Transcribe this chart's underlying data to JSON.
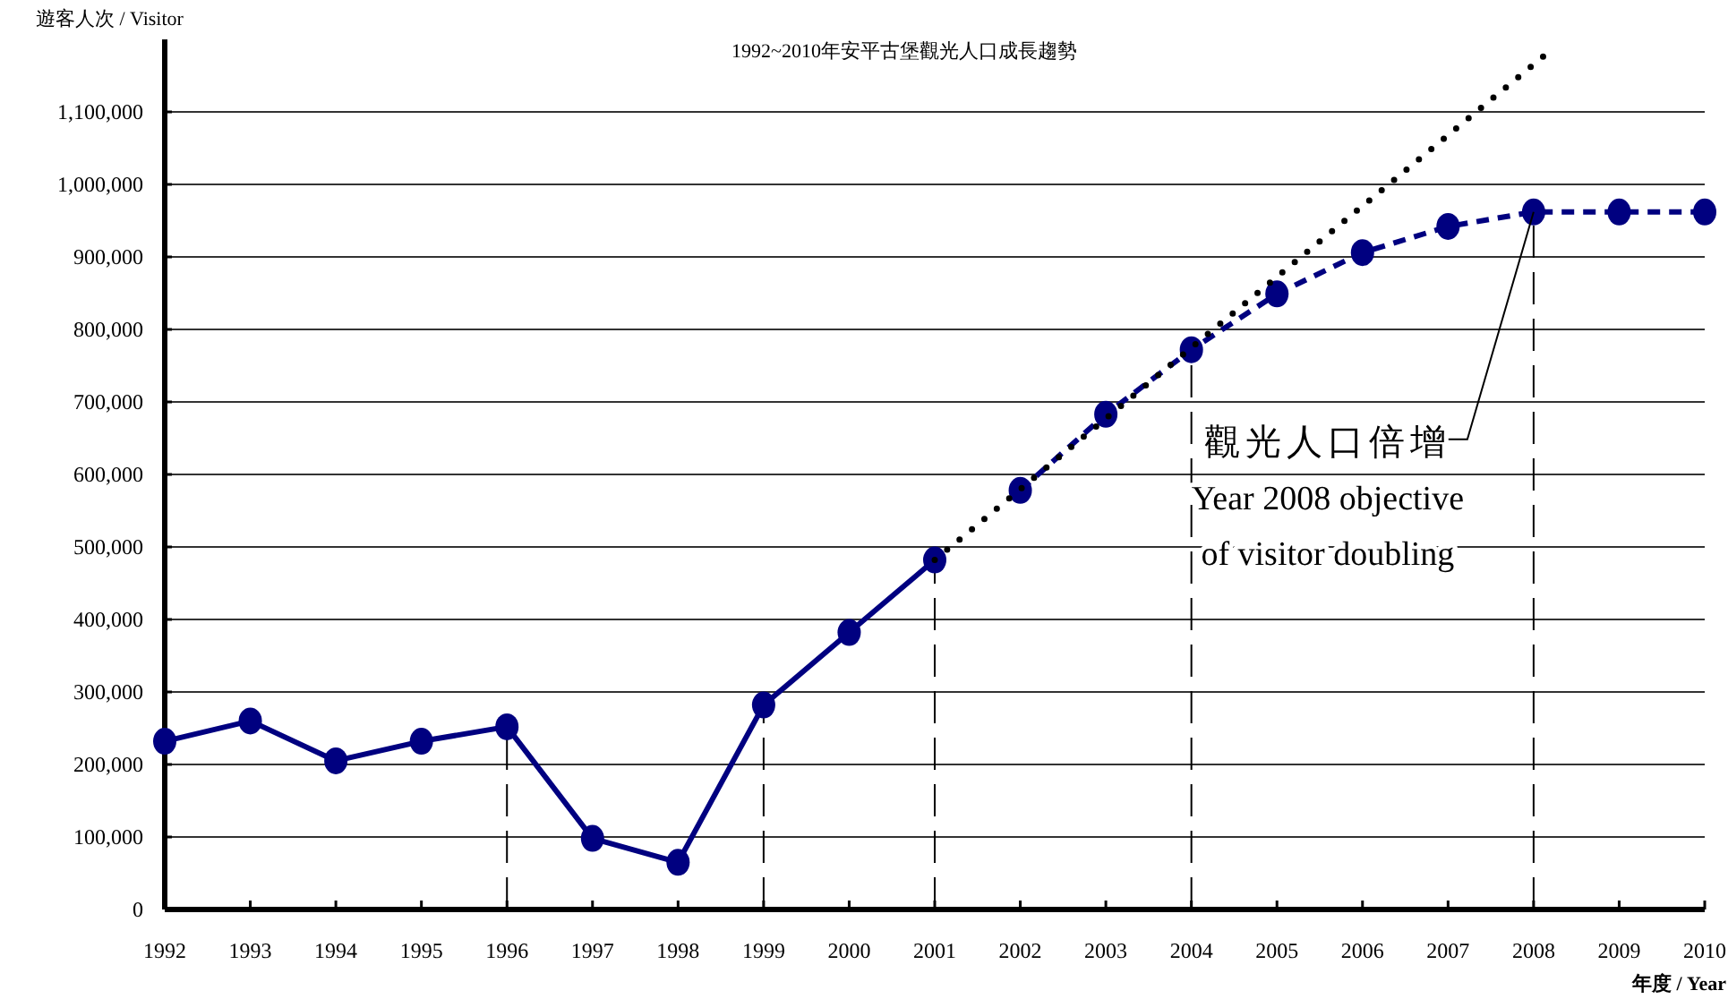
{
  "chart_data": {
    "type": "line",
    "title": "1992~2010年安平古堡觀光人口成長趨勢",
    "xlabel": "年度 / Year",
    "ylabel": "遊客人次 / Visitor",
    "xlim": [
      1992,
      2010
    ],
    "xticks": [
      1992,
      1993,
      1994,
      1995,
      1996,
      1997,
      1998,
      1999,
      2000,
      2001,
      2002,
      2003,
      2004,
      2005,
      2006,
      2007,
      2008,
      2009,
      2010
    ],
    "ylim": [
      0,
      1200000
    ],
    "yticks": [
      0,
      {
        "value": 100000,
        "label": "100,000"
      },
      {
        "value": 200000,
        "label": "200,000"
      },
      {
        "value": 300000,
        "label": "300,000"
      },
      {
        "value": 400000,
        "label": "400,000"
      },
      {
        "value": 500000,
        "label": "500,000"
      },
      {
        "value": 600000,
        "label": "600,000"
      },
      {
        "value": 700000,
        "label": "700,000"
      },
      {
        "value": 800000,
        "label": "800,000"
      },
      {
        "value": 900000,
        "label": "900,000"
      },
      {
        "value": 1000000,
        "label": "1,000,000"
      },
      {
        "value": 1100000,
        "label": "1,100,000"
      }
    ],
    "grid": "y",
    "marker": "circle",
    "series": [
      {
        "color": "#000080",
        "line_style": "solid",
        "x": [
          1992,
          1993,
          1994,
          1995,
          1996,
          1997,
          1998,
          1999,
          2000,
          2001
        ],
        "values": [
          232000,
          260000,
          205000,
          232000,
          252000,
          98000,
          65000,
          282000,
          382000,
          482000
        ]
      },
      {
        "color": "#000080",
        "line_style": "dashed",
        "x": [
          2002,
          2003,
          2004,
          2005,
          2006,
          2007,
          2008,
          2009,
          2010
        ],
        "values": [
          578000,
          683000,
          772000,
          849000,
          906000,
          942000,
          962000,
          962000,
          962000
        ]
      },
      {
        "color": "#000000",
        "line_style": "dotted",
        "marker": "none",
        "x": [
          2001,
          2008.2
        ],
        "values": [
          482000,
          1185000
        ]
      }
    ],
    "ref_lines": [
      {
        "axis": "x",
        "value": 1996,
        "line_style": "dashed"
      },
      {
        "axis": "x",
        "value": 1999,
        "line_style": "dashed"
      },
      {
        "axis": "x",
        "value": 2001,
        "line_style": "dashed"
      },
      {
        "axis": "x",
        "value": 2004,
        "line_style": "dashed"
      },
      {
        "axis": "x",
        "value": 2008,
        "line_style": "dashed"
      }
    ],
    "annotations": [
      {
        "text": "觀光人口倍增\nYear 2008 objective\nof visitor doubling",
        "x": 2008,
        "y": 962000
      }
    ]
  }
}
